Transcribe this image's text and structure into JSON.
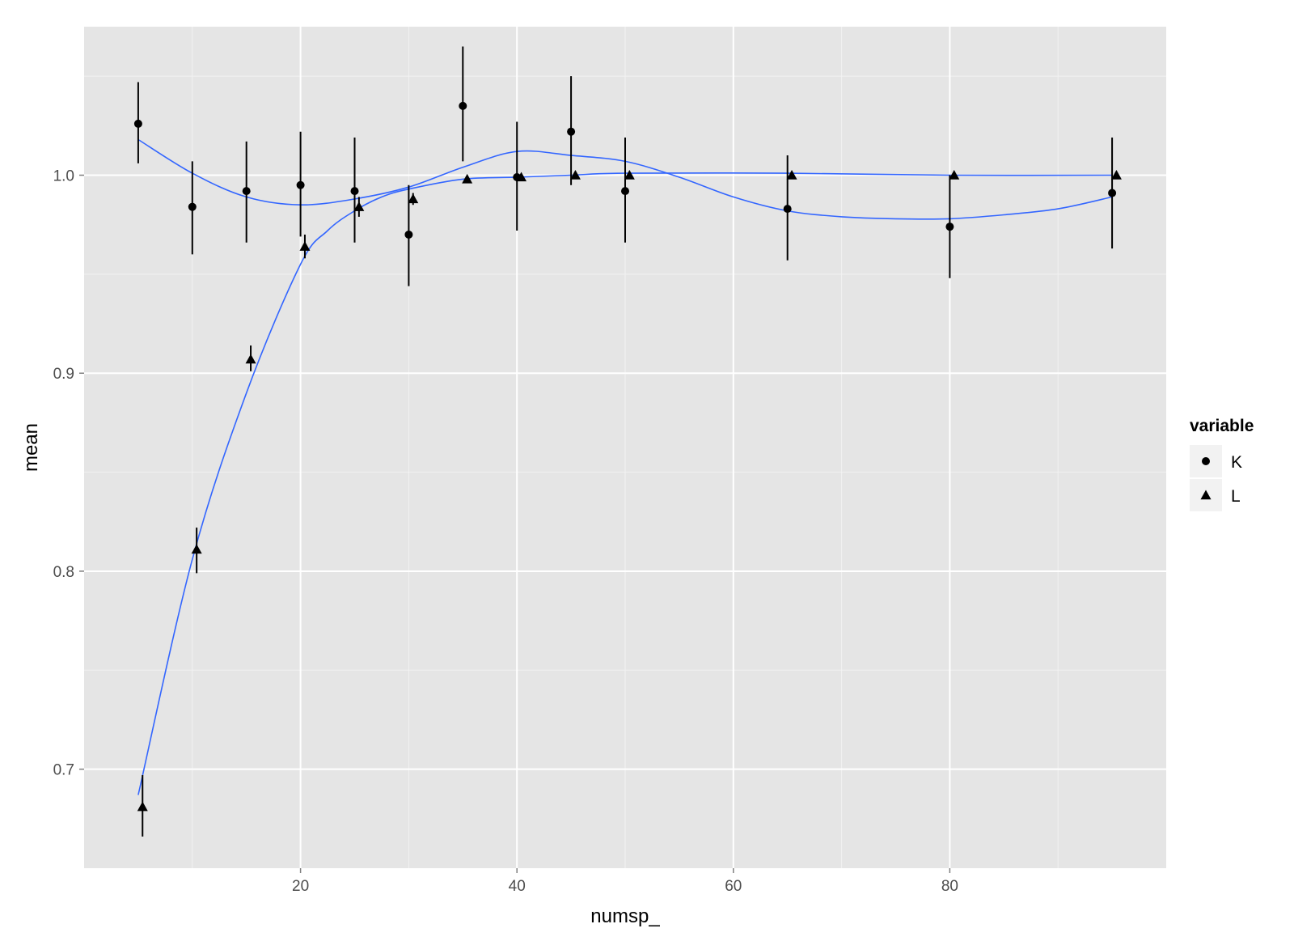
{
  "chart_data": {
    "type": "scatter",
    "title": "",
    "xlabel": "numsp_",
    "ylabel": "mean",
    "xlim": [
      0,
      100
    ],
    "ylim": [
      0.65,
      1.075
    ],
    "x_ticks": [
      20,
      40,
      60,
      80
    ],
    "x_tick_labels": [
      "20",
      "40",
      "60",
      "80"
    ],
    "x_minor_ticks": [
      10,
      30,
      50,
      70,
      90
    ],
    "y_ticks": [
      0.7,
      0.8,
      0.9,
      1.0
    ],
    "y_tick_labels": [
      "0.7",
      "0.8",
      "0.9",
      "1.0"
    ],
    "y_minor_ticks": [
      0.75,
      0.85,
      0.95,
      1.05
    ],
    "grid": true,
    "panel_background": "#e5e5e5",
    "grid_color": "#ffffff",
    "point_color": "#000000",
    "smooth_color": "#3366ff",
    "legend": {
      "title": "variable",
      "position": "right",
      "entries": [
        {
          "label": "K",
          "shape": "circle"
        },
        {
          "label": "L",
          "shape": "triangle"
        }
      ]
    },
    "series": [
      {
        "name": "K",
        "shape": "circle",
        "x": [
          5,
          10,
          15,
          20,
          25,
          30,
          35,
          40,
          45,
          50,
          65,
          80,
          95
        ],
        "y": [
          1.026,
          0.984,
          0.992,
          0.995,
          0.992,
          0.97,
          1.035,
          0.999,
          1.022,
          0.992,
          0.983,
          0.974,
          0.991
        ],
        "ymin": [
          1.006,
          0.96,
          0.966,
          0.969,
          0.966,
          0.944,
          1.007,
          0.972,
          0.995,
          0.966,
          0.957,
          0.948,
          0.963
        ],
        "ymax": [
          1.047,
          1.007,
          1.017,
          1.022,
          1.019,
          0.995,
          1.065,
          1.027,
          1.05,
          1.019,
          1.01,
          1.0,
          1.019
        ],
        "smooth": {
          "x": [
            5,
            10,
            15,
            20,
            25,
            30,
            35,
            40,
            45,
            50,
            55,
            60,
            65,
            70,
            75,
            80,
            85,
            90,
            95
          ],
          "y": [
            1.018,
            1.001,
            0.989,
            0.985,
            0.988,
            0.994,
            1.004,
            1.012,
            1.01,
            1.007,
            0.999,
            0.989,
            0.982,
            0.979,
            0.978,
            0.978,
            0.98,
            0.983,
            0.989
          ]
        }
      },
      {
        "name": "L",
        "shape": "triangle",
        "x": [
          5,
          10,
          15,
          20,
          25,
          30,
          35,
          40,
          45,
          50,
          65,
          80,
          95
        ],
        "y": [
          0.681,
          0.811,
          0.907,
          0.964,
          0.984,
          0.988,
          0.998,
          0.999,
          1.0,
          1.0,
          1.0,
          1.0,
          1.0
        ],
        "ymin": [
          0.666,
          0.799,
          0.901,
          0.958,
          0.979,
          0.985,
          0.997,
          0.998,
          0.999,
          0.999,
          0.999,
          0.999,
          0.999
        ],
        "ymax": [
          0.697,
          0.822,
          0.914,
          0.97,
          0.989,
          0.991,
          0.999,
          1.0,
          1.001,
          1.001,
          1.001,
          1.001,
          1.001
        ],
        "smooth": {
          "x": [
            5,
            10,
            15,
            20,
            22.5,
            25,
            27.5,
            30,
            35,
            40,
            45,
            50,
            65,
            80,
            95
          ],
          "y": [
            0.687,
            0.806,
            0.89,
            0.955,
            0.972,
            0.982,
            0.989,
            0.993,
            0.998,
            0.999,
            1.0,
            1.001,
            1.001,
            1.0,
            1.0
          ]
        }
      }
    ]
  }
}
